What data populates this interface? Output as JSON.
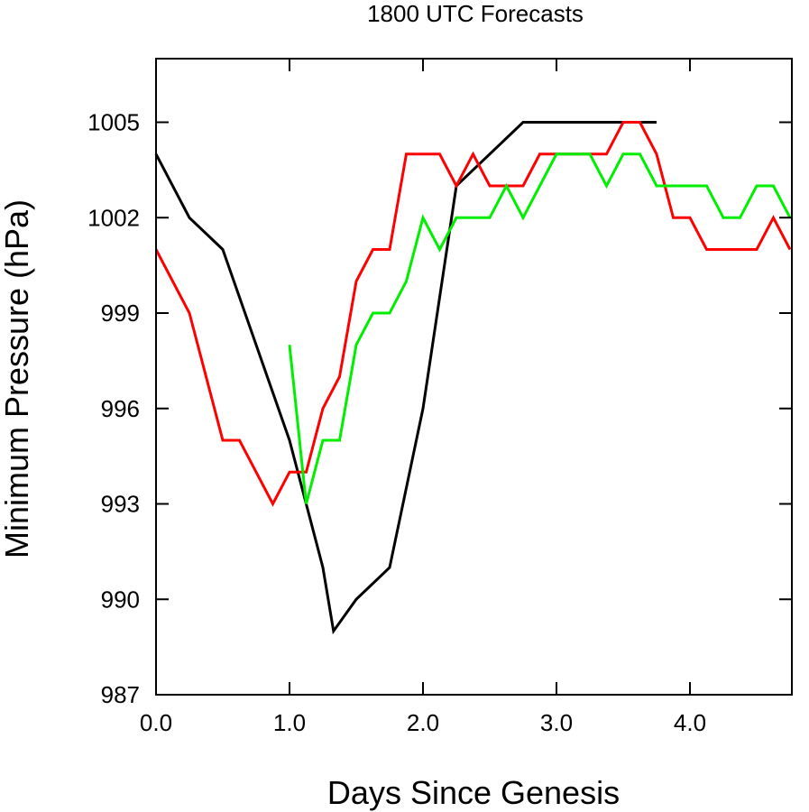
{
  "chart_data": {
    "type": "line",
    "title": "1800 UTC Forecasts",
    "xlabel": "Days Since Genesis",
    "ylabel": "Minimum Pressure (hPa)",
    "xlim": [
      0,
      4.75
    ],
    "ylim": [
      987,
      1007
    ],
    "x_ticks": [
      0,
      1,
      2,
      3,
      4
    ],
    "x_tick_labels": [
      "0.0",
      "1.0",
      "2.0",
      "3.0",
      "4.0"
    ],
    "y_ticks": [
      987,
      990,
      993,
      996,
      999,
      1002,
      1005
    ],
    "y_tick_labels": [
      "987",
      "990",
      "993",
      "996",
      "999",
      "1002",
      "1005"
    ],
    "grid": false,
    "legend": "none",
    "series": [
      {
        "color": "#000000",
        "x": [
          0,
          0.25,
          0.5,
          0.75,
          1.0,
          1.25,
          1.33,
          1.5,
          1.75,
          2.0,
          2.25,
          2.5,
          2.75,
          3.0,
          3.25,
          3.5,
          3.75
        ],
        "y": [
          1004,
          1002,
          1001,
          998,
          995,
          991,
          989,
          990,
          991,
          996,
          1003,
          1004,
          1005,
          1005,
          1005,
          1005,
          1005
        ]
      },
      {
        "color": "#ff0000",
        "x": [
          0,
          0.25,
          0.5,
          0.625,
          0.875,
          1.0,
          1.125,
          1.25,
          1.375,
          1.5,
          1.625,
          1.75,
          1.875,
          2.0,
          2.125,
          2.25,
          2.375,
          2.5,
          2.625,
          2.75,
          2.875,
          3.0,
          3.125,
          3.25,
          3.375,
          3.5,
          3.625,
          3.75,
          3.875,
          4.0,
          4.125,
          4.25,
          4.375,
          4.5,
          4.625,
          4.75
        ],
        "y": [
          1001,
          999,
          995,
          995,
          993,
          994,
          994,
          996,
          997,
          1000,
          1001,
          1001,
          1004,
          1004,
          1004,
          1003,
          1004,
          1003,
          1003,
          1003,
          1004,
          1004,
          1004,
          1004,
          1004,
          1005,
          1005,
          1004,
          1002,
          1002,
          1001,
          1001,
          1001,
          1001,
          1002,
          1001
        ]
      },
      {
        "color": "#00ee00",
        "x": [
          1.0,
          1.125,
          1.25,
          1.375,
          1.5,
          1.625,
          1.75,
          1.875,
          2.0,
          2.125,
          2.25,
          2.375,
          2.5,
          2.625,
          2.75,
          2.875,
          3.0,
          3.125,
          3.25,
          3.375,
          3.5,
          3.625,
          3.75,
          3.875,
          4.0,
          4.125,
          4.25,
          4.375,
          4.5,
          4.625,
          4.75
        ],
        "y": [
          998,
          993,
          995,
          995,
          998,
          999,
          999,
          1000,
          1002,
          1001,
          1002,
          1002,
          1002,
          1003,
          1002,
          1003,
          1004,
          1004,
          1004,
          1003,
          1004,
          1004,
          1003,
          1003,
          1003,
          1003,
          1002,
          1002,
          1003,
          1003,
          1002
        ]
      }
    ]
  }
}
